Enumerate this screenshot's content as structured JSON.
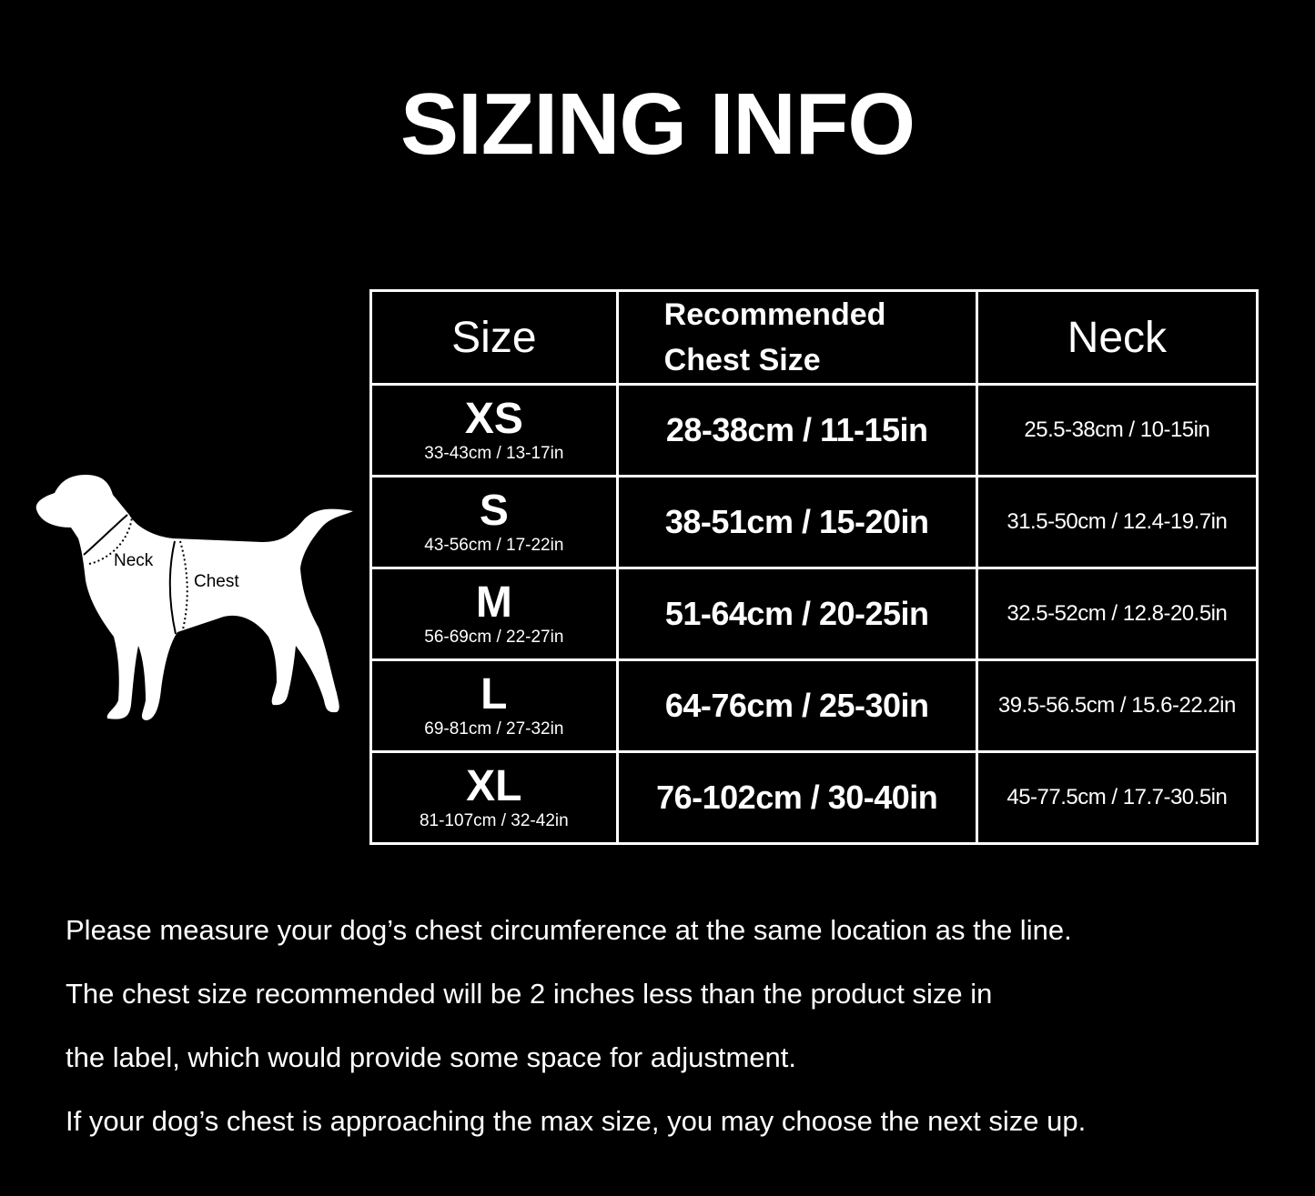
{
  "title": "SIZING INFO",
  "diagram": {
    "neck_label": "Neck",
    "chest_label": "Chest"
  },
  "table": {
    "headers": [
      "Size",
      "Recommended",
      "Chest Size",
      "Neck"
    ],
    "rows": [
      {
        "size": "XS",
        "size_range": "33-43cm / 13-17in",
        "chest": "28-38cm / 11-15in",
        "neck": "25.5-38cm / 10-15in"
      },
      {
        "size": "S",
        "size_range": "43-56cm / 17-22in",
        "chest": "38-51cm / 15-20in",
        "neck": "31.5-50cm / 12.4-19.7in"
      },
      {
        "size": "M",
        "size_range": "56-69cm / 22-27in",
        "chest": "51-64cm / 20-25in",
        "neck": "32.5-52cm / 12.8-20.5in"
      },
      {
        "size": "L",
        "size_range": "69-81cm / 27-32in",
        "chest": "64-76cm / 25-30in",
        "neck": "39.5-56.5cm / 15.6-22.2in"
      },
      {
        "size": "XL",
        "size_range": "81-107cm / 32-42in",
        "chest": "76-102cm / 30-40in",
        "neck": "45-77.5cm / 17.7-30.5in"
      }
    ]
  },
  "notes": [
    "Please measure your dog’s chest circumference at the same location as the line.",
    "The chest size recommended will be 2 inches less than the product size in",
    "the label, which would provide some space for adjustment.",
    "If your dog’s chest is approaching the max size, you may choose the next size up."
  ]
}
